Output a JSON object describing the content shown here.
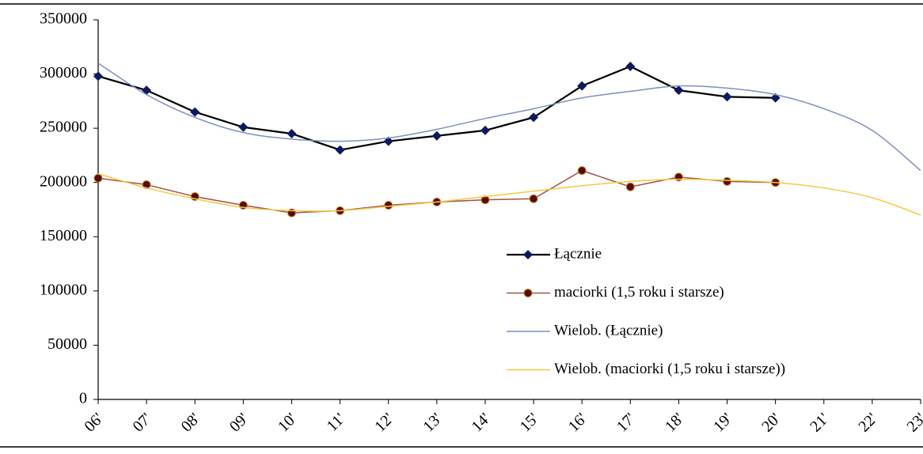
{
  "chart_data": {
    "type": "line",
    "categories": [
      "06'",
      "07'",
      "08'",
      "09'",
      "10'",
      "11'",
      "12'",
      "13'",
      "14'",
      "15'",
      "16'",
      "17'",
      "18'",
      "19'",
      "20'",
      "21'",
      "22'",
      "23'"
    ],
    "series": [
      {
        "name": "Łącznie",
        "color": "#000000",
        "marker_color": "#0d1a5e",
        "marker": "diamond",
        "smooth": false,
        "values": [
          298000,
          285000,
          265000,
          251000,
          245000,
          230000,
          238000,
          243000,
          248000,
          260000,
          289000,
          307000,
          285000,
          279000,
          278000,
          null,
          null,
          null
        ]
      },
      {
        "name": "maciorki (1,5 roku i starsze)",
        "color": "#a0524a",
        "marker_color": "#5a0a0a",
        "marker": "circle",
        "smooth": false,
        "values": [
          204000,
          198000,
          187000,
          179000,
          172000,
          174000,
          179000,
          182000,
          184000,
          185000,
          211000,
          196000,
          205000,
          201000,
          200000,
          null,
          null,
          null
        ]
      },
      {
        "name": "Wielob. (Łącznie)",
        "color": "#7f8fc0",
        "marker": "none",
        "smooth": true,
        "values": [
          310000,
          281000,
          260000,
          246000,
          240000,
          238000,
          241000,
          249000,
          259000,
          268000,
          278000,
          284000,
          289000,
          287000,
          281000,
          268000,
          248000,
          211000
        ]
      },
      {
        "name": "Wielob. (maciorki (1,5 roku i starsze))",
        "color": "#f5c842",
        "marker": "none",
        "smooth": true,
        "values": [
          208000,
          195000,
          185000,
          177000,
          174000,
          174000,
          178000,
          182000,
          187000,
          192000,
          197000,
          201000,
          203000,
          202000,
          200000,
          195000,
          186000,
          170000
        ]
      }
    ],
    "ylim": [
      0,
      350000
    ],
    "yticks": [
      0,
      50000,
      100000,
      150000,
      200000,
      250000,
      300000,
      350000
    ],
    "grid": false,
    "legend": "center"
  }
}
